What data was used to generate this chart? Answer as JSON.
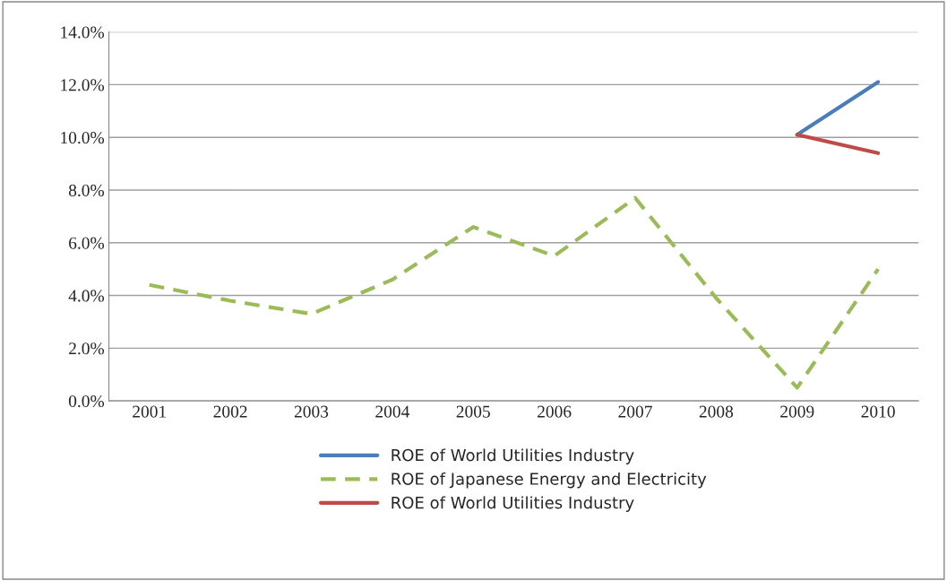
{
  "chart_data": {
    "type": "line",
    "categories": [
      "2001",
      "2002",
      "2003",
      "2004",
      "2005",
      "2006",
      "2007",
      "2008",
      "2009",
      "2010"
    ],
    "series": [
      {
        "name": "ROE of World Utilities Industry",
        "color": "#4a7ebb",
        "line_style": "solid",
        "values": [
          null,
          null,
          null,
          null,
          null,
          null,
          null,
          null,
          10.1,
          12.1
        ]
      },
      {
        "name": "ROE of Japanese Energy and Electricity",
        "color": "#9bbb59",
        "line_style": "dashed",
        "values": [
          4.4,
          3.8,
          3.3,
          4.6,
          6.6,
          5.5,
          7.7,
          3.9,
          0.5,
          5.0
        ]
      },
      {
        "name": "ROE of World Utilities Industry",
        "color": "#be4b48",
        "line_style": "solid",
        "values": [
          null,
          null,
          null,
          null,
          null,
          null,
          null,
          null,
          10.1,
          9.4
        ]
      }
    ],
    "ylim": [
      0,
      14
    ],
    "yticks": [
      {
        "value": 0,
        "label": "0.0%"
      },
      {
        "value": 2,
        "label": "2.0%"
      },
      {
        "value": 4,
        "label": "4.0%"
      },
      {
        "value": 6,
        "label": "6.0%"
      },
      {
        "value": 8,
        "label": "8.0%"
      },
      {
        "value": 10,
        "label": "10.0%"
      },
      {
        "value": 12,
        "label": "12.0%"
      },
      {
        "value": 14,
        "label": "14.0%"
      }
    ],
    "grid": "y",
    "legend": "bottom"
  }
}
